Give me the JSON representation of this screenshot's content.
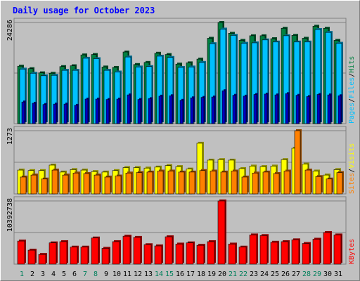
{
  "page": {
    "title": "Daily usage for October 2023"
  },
  "colors": {
    "background": "#c0c0c0",
    "title": "#0000ff",
    "hits": "#008040",
    "files": "#00c0ff",
    "pages": "#00c0ff",
    "visits": "#ffff00",
    "sites": "#ff8000",
    "kbytes": "#ff0000",
    "weekday": "#000000",
    "weekend": "#00805c"
  },
  "chart_data": [
    {
      "type": "bar",
      "id": "hits_files_pages",
      "title": "Daily usage for October 2023",
      "categories": [
        "1",
        "2",
        "3",
        "4",
        "5",
        "6",
        "7",
        "8",
        "9",
        "10",
        "11",
        "12",
        "13",
        "14",
        "15",
        "16",
        "17",
        "18",
        "19",
        "20",
        "21",
        "22",
        "23",
        "24",
        "25",
        "26",
        "27",
        "28",
        "29",
        "30",
        "31"
      ],
      "weekend_days": [
        "1",
        "7",
        "8",
        "14",
        "15",
        "21",
        "22",
        "28",
        "29"
      ],
      "ymax_label": "24286",
      "ylim": [
        0,
        24286
      ],
      "legend_labels": [
        "Pages",
        "/",
        "Files",
        "/",
        "Hits"
      ],
      "series": [
        {
          "name": "Hits",
          "values": [
            13800,
            13200,
            12200,
            12100,
            13700,
            13900,
            16500,
            16600,
            13600,
            13500,
            17200,
            14200,
            14700,
            16900,
            16600,
            14300,
            14600,
            15500,
            20500,
            24286,
            21700,
            20000,
            21100,
            21100,
            20400,
            22900,
            21200,
            20500,
            23400,
            22900,
            20000
          ]
        },
        {
          "name": "Files",
          "values": [
            13100,
            12100,
            11500,
            11600,
            12800,
            12800,
            15700,
            15600,
            12800,
            12400,
            16000,
            13600,
            13700,
            16200,
            15900,
            13500,
            13600,
            14700,
            19200,
            22700,
            21200,
            19300,
            19400,
            20100,
            19600,
            21100,
            19600,
            19600,
            22600,
            21900,
            19300
          ]
        },
        {
          "name": "Pages",
          "values": [
            5200,
            4900,
            4600,
            4700,
            4700,
            4400,
            5900,
            5900,
            5800,
            5900,
            6900,
            5800,
            6000,
            6600,
            6700,
            5600,
            6200,
            6300,
            6400,
            7900,
            6800,
            6600,
            7000,
            7100,
            6900,
            7200,
            6800,
            6500,
            7000,
            6900,
            6700
          ]
        }
      ]
    },
    {
      "type": "bar",
      "id": "visits_sites",
      "categories": [
        "1",
        "2",
        "3",
        "4",
        "5",
        "6",
        "7",
        "8",
        "9",
        "10",
        "11",
        "12",
        "13",
        "14",
        "15",
        "16",
        "17",
        "18",
        "19",
        "20",
        "21",
        "22",
        "23",
        "24",
        "25",
        "26",
        "27",
        "28",
        "29",
        "30",
        "31"
      ],
      "ymax_label": "1273",
      "ylim": [
        0,
        1273
      ],
      "legend_labels": [
        "Sites",
        "/",
        "Visits"
      ],
      "series": [
        {
          "name": "Visits",
          "values": [
            480,
            470,
            470,
            580,
            440,
            490,
            480,
            450,
            440,
            470,
            530,
            530,
            520,
            540,
            570,
            550,
            500,
            1020,
            680,
            690,
            680,
            510,
            560,
            550,
            560,
            690,
            920,
            600,
            460,
            380,
            490
          ]
        },
        {
          "name": "Sites",
          "values": [
            340,
            380,
            300,
            480,
            380,
            420,
            410,
            380,
            340,
            360,
            420,
            430,
            440,
            460,
            460,
            440,
            440,
            470,
            460,
            440,
            460,
            340,
            420,
            440,
            410,
            460,
            1273,
            480,
            350,
            300,
            430
          ]
        }
      ]
    },
    {
      "type": "bar",
      "id": "kbytes",
      "categories": [
        "1",
        "2",
        "3",
        "4",
        "5",
        "6",
        "7",
        "8",
        "9",
        "10",
        "11",
        "12",
        "13",
        "14",
        "15",
        "16",
        "17",
        "18",
        "19",
        "20",
        "21",
        "22",
        "23",
        "24",
        "25",
        "26",
        "27",
        "28",
        "29",
        "30",
        "31"
      ],
      "ymax_label": "10392738",
      "ylim": [
        0,
        10392738
      ],
      "legend_labels": [
        "KBytes"
      ],
      "series": [
        {
          "name": "KBytes",
          "values": [
            3800000,
            2300000,
            1600000,
            3500000,
            3700000,
            2800000,
            2800000,
            4300000,
            2600000,
            3700000,
            4600000,
            4400000,
            3200000,
            3000000,
            4500000,
            3300000,
            3500000,
            3100000,
            3700000,
            10392738,
            3300000,
            2800000,
            4800000,
            4700000,
            3600000,
            3700000,
            4000000,
            3400000,
            4100000,
            5200000,
            4800000
          ]
        }
      ]
    }
  ]
}
